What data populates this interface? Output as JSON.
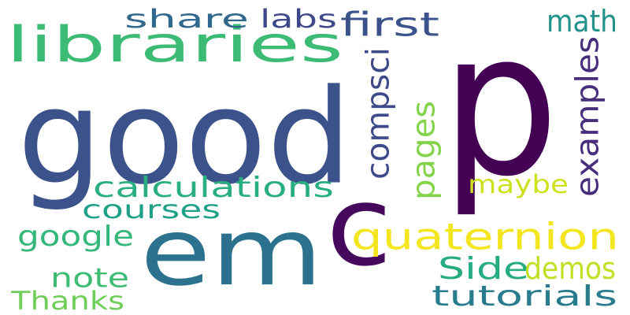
{
  "words": [
    {
      "text": "p",
      "color": "#440154",
      "vertical": false
    },
    {
      "text": "good",
      "color": "#3b528b",
      "vertical": false
    },
    {
      "text": "em",
      "color": "#2c728e",
      "vertical": false
    },
    {
      "text": "c",
      "color": "#46085c",
      "vertical": false
    },
    {
      "text": "libraries",
      "color": "#3cbb75",
      "vertical": false
    },
    {
      "text": "quaternion",
      "color": "#f4e61e",
      "vertical": false
    },
    {
      "text": "calculations",
      "color": "#29af7f",
      "vertical": false
    },
    {
      "text": "compsci",
      "color": "#3e4a89",
      "vertical": true
    },
    {
      "text": "examples",
      "color": "#472d7b",
      "vertical": true
    },
    {
      "text": "pages",
      "color": "#84d44b",
      "vertical": true
    },
    {
      "text": "share",
      "color": "#31688e",
      "vertical": false
    },
    {
      "text": "labs",
      "color": "#3f4889",
      "vertical": false
    },
    {
      "text": "first",
      "color": "#3b528b",
      "vertical": false
    },
    {
      "text": "math",
      "color": "#21918c",
      "vertical": false
    },
    {
      "text": "maybe",
      "color": "#cde11d",
      "vertical": false
    },
    {
      "text": "courses",
      "color": "#1fa187",
      "vertical": false
    },
    {
      "text": "google",
      "color": "#35b779",
      "vertical": false
    },
    {
      "text": "note",
      "color": "#3dbc74",
      "vertical": false
    },
    {
      "text": "Side",
      "color": "#25ac82",
      "vertical": false
    },
    {
      "text": "demos",
      "color": "#c2df23",
      "vertical": false
    },
    {
      "text": "tutorials",
      "color": "#287c8e",
      "vertical": false
    },
    {
      "text": "Thanks",
      "color": "#6ece58",
      "vertical": false
    }
  ]
}
